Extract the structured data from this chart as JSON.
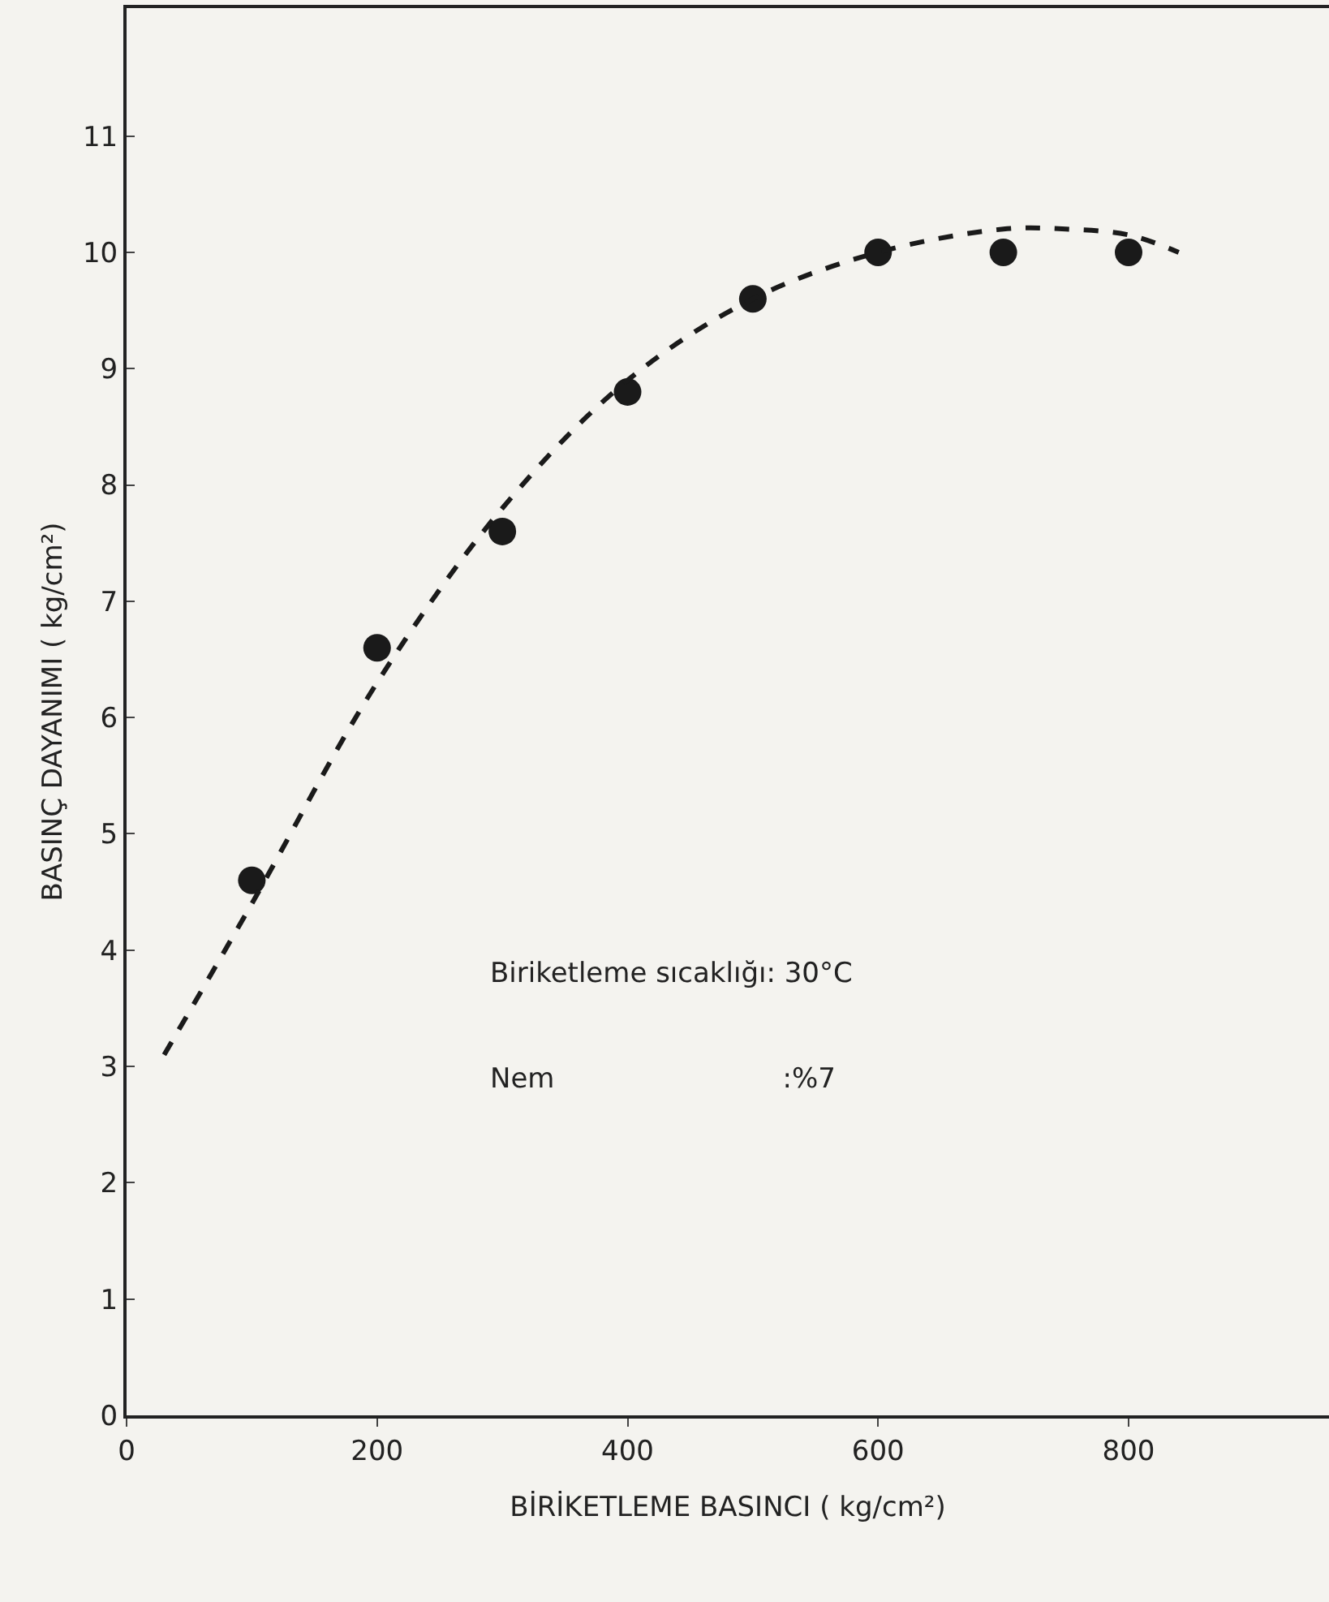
{
  "chart_data": {
    "type": "scatter",
    "xlabel": "BİRİKETLEME BASINCI ( kg/cm²)",
    "ylabel": "BASINÇ DAYANIMI ( kg/cm²)",
    "x": [
      100,
      200,
      300,
      400,
      500,
      600,
      700,
      800
    ],
    "series": [
      {
        "type": "scatter",
        "color": "#1a1a1a",
        "values": [
          4.6,
          6.6,
          7.6,
          8.8,
          9.6,
          10.0,
          10.0,
          10.0
        ],
        "marker": "circle"
      },
      {
        "type": "line",
        "color": "#1a1a1a",
        "line_style": "dashed",
        "x": [
          30,
          100,
          200,
          300,
          400,
          500,
          600,
          700,
          750,
          800,
          840
        ],
        "values": [
          3.1,
          4.4,
          6.3,
          7.8,
          8.9,
          9.6,
          10.0,
          10.2,
          10.2,
          10.15,
          10.0
        ]
      }
    ],
    "xlim": [
      0,
      960
    ],
    "ylim": [
      0,
      12.1
    ],
    "xticks": [
      0,
      200,
      400,
      600,
      800
    ],
    "yticks": [
      0,
      1,
      2,
      3,
      4,
      5,
      6,
      7,
      8,
      9,
      10,
      11
    ],
    "grid": false,
    "annotations": [
      "Biriketleme sıcaklığı: 30°C",
      "Nem                          :%7"
    ]
  }
}
